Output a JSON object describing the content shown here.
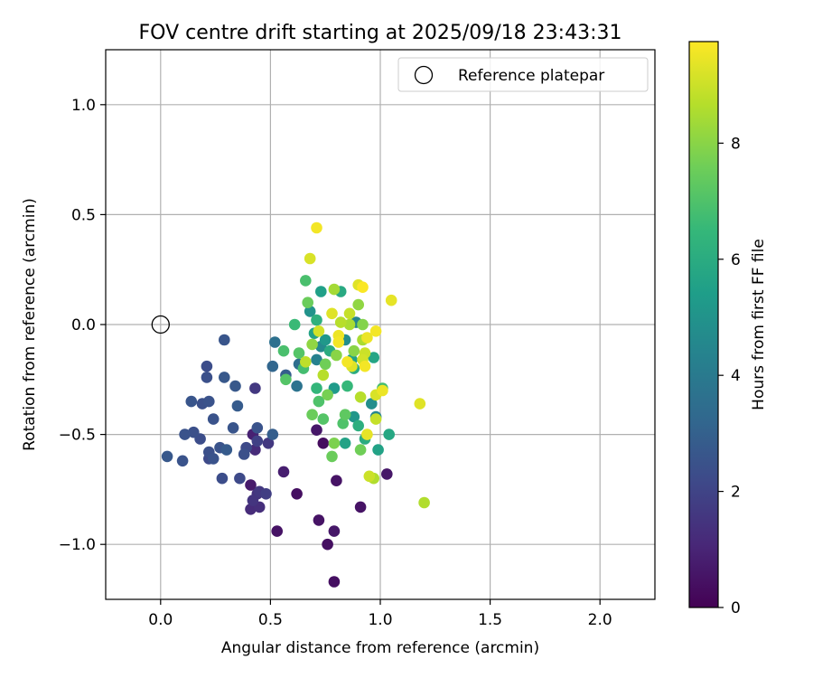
{
  "chart_data": {
    "type": "scatter",
    "title": "FOV centre drift starting at 2025/09/18 23:43:31",
    "xlabel": "Angular distance from reference (arcmin)",
    "ylabel": "Rotation from reference (arcmin)",
    "xlim": [
      -0.25,
      2.25
    ],
    "ylim": [
      -1.25,
      1.25
    ],
    "xticks": [
      0.0,
      0.5,
      1.0,
      1.5,
      2.0
    ],
    "xtick_labels": [
      "0.0",
      "0.5",
      "1.0",
      "1.5",
      "2.0"
    ],
    "yticks": [
      -1.0,
      -0.5,
      0.0,
      0.5,
      1.0
    ],
    "ytick_labels": [
      "−1.0",
      "−0.5",
      "0.0",
      "0.5",
      "1.0"
    ],
    "grid": true,
    "legend": {
      "position": "top-right",
      "entries": [
        {
          "label": "Reference platepar",
          "marker": "open-circle"
        }
      ]
    },
    "reference_point": {
      "x": 0.0,
      "y": 0.0
    },
    "colorbar": {
      "label": "Hours from first FF file",
      "min": 0,
      "max": 9.75,
      "ticks": [
        0,
        2,
        4,
        6,
        8
      ],
      "tick_labels": [
        "0",
        "2",
        "4",
        "6",
        "8"
      ],
      "colormap": [
        "#440154",
        "#482878",
        "#3e4989",
        "#31688e",
        "#26828e",
        "#1f9e89",
        "#35b779",
        "#6ece58",
        "#b5de2b",
        "#fde725"
      ]
    },
    "points": [
      {
        "x": 0.03,
        "y": -0.6,
        "h": 2.7
      },
      {
        "x": 0.1,
        "y": -0.62,
        "h": 2.5
      },
      {
        "x": 0.11,
        "y": -0.5,
        "h": 2.5
      },
      {
        "x": 0.15,
        "y": -0.49,
        "h": 2.4
      },
      {
        "x": 0.18,
        "y": -0.52,
        "h": 2.3
      },
      {
        "x": 0.14,
        "y": -0.35,
        "h": 2.6
      },
      {
        "x": 0.19,
        "y": -0.36,
        "h": 2.4
      },
      {
        "x": 0.22,
        "y": -0.35,
        "h": 2.5
      },
      {
        "x": 0.21,
        "y": -0.24,
        "h": 2.4
      },
      {
        "x": 0.21,
        "y": -0.19,
        "h": 2.3
      },
      {
        "x": 0.24,
        "y": -0.43,
        "h": 2.5
      },
      {
        "x": 0.22,
        "y": -0.58,
        "h": 2.4
      },
      {
        "x": 0.22,
        "y": -0.61,
        "h": 2.2
      },
      {
        "x": 0.27,
        "y": -0.56,
        "h": 2.5
      },
      {
        "x": 0.24,
        "y": -0.61,
        "h": 2.5
      },
      {
        "x": 0.29,
        "y": -0.07,
        "h": 2.6
      },
      {
        "x": 0.29,
        "y": -0.24,
        "h": 2.7
      },
      {
        "x": 0.3,
        "y": -0.57,
        "h": 2.8
      },
      {
        "x": 0.28,
        "y": -0.7,
        "h": 2.3
      },
      {
        "x": 0.33,
        "y": -0.47,
        "h": 2.6
      },
      {
        "x": 0.34,
        "y": -0.28,
        "h": 2.7
      },
      {
        "x": 0.35,
        "y": -0.37,
        "h": 2.8
      },
      {
        "x": 0.36,
        "y": -0.7,
        "h": 2.2
      },
      {
        "x": 0.38,
        "y": -0.59,
        "h": 2.4
      },
      {
        "x": 0.39,
        "y": -0.56,
        "h": 2.2
      },
      {
        "x": 0.41,
        "y": -0.73,
        "h": 0.7
      },
      {
        "x": 0.42,
        "y": -0.5,
        "h": 0.9
      },
      {
        "x": 0.41,
        "y": -0.84,
        "h": 1.2
      },
      {
        "x": 0.42,
        "y": -0.8,
        "h": 1.5
      },
      {
        "x": 0.43,
        "y": -0.57,
        "h": 1.2
      },
      {
        "x": 0.44,
        "y": -0.47,
        "h": 2.5
      },
      {
        "x": 0.44,
        "y": -0.53,
        "h": 1.9
      },
      {
        "x": 0.44,
        "y": -0.77,
        "h": 1.4
      },
      {
        "x": 0.43,
        "y": -0.29,
        "h": 1.6
      },
      {
        "x": 0.45,
        "y": -0.76,
        "h": 1.6
      },
      {
        "x": 0.45,
        "y": -0.83,
        "h": 1.3
      },
      {
        "x": 0.48,
        "y": -0.77,
        "h": 1.8
      },
      {
        "x": 0.49,
        "y": -0.54,
        "h": 1.6
      },
      {
        "x": 0.51,
        "y": -0.5,
        "h": 2.9
      },
      {
        "x": 0.51,
        "y": -0.19,
        "h": 3.2
      },
      {
        "x": 0.52,
        "y": -0.08,
        "h": 3.6
      },
      {
        "x": 0.53,
        "y": -0.94,
        "h": 0.5
      },
      {
        "x": 0.56,
        "y": -0.67,
        "h": 0.8
      },
      {
        "x": 0.57,
        "y": -0.23,
        "h": 2.9
      },
      {
        "x": 0.62,
        "y": -0.77,
        "h": 0.4
      },
      {
        "x": 0.62,
        "y": -0.28,
        "h": 3.7
      },
      {
        "x": 0.63,
        "y": -0.18,
        "h": 3.5
      },
      {
        "x": 0.56,
        "y": -0.12,
        "h": 6.9
      },
      {
        "x": 0.57,
        "y": -0.25,
        "h": 7.1
      },
      {
        "x": 0.61,
        "y": 0.0,
        "h": 6.6
      },
      {
        "x": 0.63,
        "y": -0.13,
        "h": 7.1
      },
      {
        "x": 0.65,
        "y": -0.2,
        "h": 6.8
      },
      {
        "x": 0.66,
        "y": -0.17,
        "h": 8.8
      },
      {
        "x": 0.66,
        "y": 0.2,
        "h": 6.9
      },
      {
        "x": 0.68,
        "y": 0.3,
        "h": 9.2
      },
      {
        "x": 0.68,
        "y": 0.06,
        "h": 5.0
      },
      {
        "x": 0.67,
        "y": 0.1,
        "h": 7.5
      },
      {
        "x": 0.69,
        "y": -0.09,
        "h": 8.1
      },
      {
        "x": 0.7,
        "y": -0.04,
        "h": 5.6
      },
      {
        "x": 0.69,
        "y": -0.41,
        "h": 7.5
      },
      {
        "x": 0.71,
        "y": 0.44,
        "h": 9.6
      },
      {
        "x": 0.71,
        "y": 0.02,
        "h": 6.2
      },
      {
        "x": 0.71,
        "y": -0.16,
        "h": 4.3
      },
      {
        "x": 0.71,
        "y": -0.29,
        "h": 6.4
      },
      {
        "x": 0.71,
        "y": -0.48,
        "h": 0.6
      },
      {
        "x": 0.72,
        "y": -0.35,
        "h": 7.0
      },
      {
        "x": 0.72,
        "y": -0.89,
        "h": 0.5
      },
      {
        "x": 0.73,
        "y": 0.15,
        "h": 5.5
      },
      {
        "x": 0.72,
        "y": -0.03,
        "h": 9.1
      },
      {
        "x": 0.73,
        "y": -0.1,
        "h": 4.6
      },
      {
        "x": 0.74,
        "y": -0.43,
        "h": 7.1
      },
      {
        "x": 0.74,
        "y": -0.54,
        "h": 0.3
      },
      {
        "x": 0.74,
        "y": -0.23,
        "h": 8.7
      },
      {
        "x": 0.75,
        "y": -0.18,
        "h": 7.6
      },
      {
        "x": 0.75,
        "y": -0.07,
        "h": 5.2
      },
      {
        "x": 0.76,
        "y": -1.0,
        "h": 0.4
      },
      {
        "x": 0.76,
        "y": -0.32,
        "h": 7.7
      },
      {
        "x": 0.77,
        "y": -0.12,
        "h": 6.0
      },
      {
        "x": 0.78,
        "y": -0.6,
        "h": 7.5
      },
      {
        "x": 0.78,
        "y": 0.05,
        "h": 9.3
      },
      {
        "x": 0.79,
        "y": -0.54,
        "h": 7.8
      },
      {
        "x": 0.79,
        "y": -0.94,
        "h": 0.6
      },
      {
        "x": 0.79,
        "y": -1.17,
        "h": 0.4
      },
      {
        "x": 0.8,
        "y": -0.71,
        "h": 0.5
      },
      {
        "x": 0.79,
        "y": 0.16,
        "h": 8.4
      },
      {
        "x": 0.79,
        "y": -0.29,
        "h": 5.3
      },
      {
        "x": 0.8,
        "y": -0.14,
        "h": 8.0
      },
      {
        "x": 0.81,
        "y": -0.05,
        "h": 9.5
      },
      {
        "x": 0.81,
        "y": -0.08,
        "h": 9.6
      },
      {
        "x": 0.82,
        "y": 0.15,
        "h": 5.9
      },
      {
        "x": 0.82,
        "y": 0.01,
        "h": 8.7
      },
      {
        "x": 0.83,
        "y": -0.45,
        "h": 7.0
      },
      {
        "x": 0.84,
        "y": -0.41,
        "h": 7.3
      },
      {
        "x": 0.84,
        "y": -0.54,
        "h": 5.6
      },
      {
        "x": 0.84,
        "y": -0.07,
        "h": 4.8
      },
      {
        "x": 0.85,
        "y": -0.28,
        "h": 6.5
      },
      {
        "x": 0.85,
        "y": -0.17,
        "h": 9.6
      },
      {
        "x": 0.86,
        "y": 0.05,
        "h": 8.9
      },
      {
        "x": 0.86,
        "y": 0.0,
        "h": 8.5
      },
      {
        "x": 0.87,
        "y": -0.19,
        "h": 9.3
      },
      {
        "x": 0.87,
        "y": -0.16,
        "h": 5.5
      },
      {
        "x": 0.88,
        "y": -0.2,
        "h": 6.0
      },
      {
        "x": 0.88,
        "y": -0.42,
        "h": 5.1
      },
      {
        "x": 0.88,
        "y": -0.12,
        "h": 8.0
      },
      {
        "x": 0.89,
        "y": 0.01,
        "h": 4.5
      },
      {
        "x": 0.9,
        "y": 0.09,
        "h": 8.1
      },
      {
        "x": 0.9,
        "y": 0.18,
        "h": 9.3
      },
      {
        "x": 0.9,
        "y": -0.46,
        "h": 6.1
      },
      {
        "x": 0.91,
        "y": -0.33,
        "h": 8.7
      },
      {
        "x": 0.91,
        "y": -0.57,
        "h": 7.6
      },
      {
        "x": 0.92,
        "y": -0.07,
        "h": 8.5
      },
      {
        "x": 0.92,
        "y": 0.17,
        "h": 9.7
      },
      {
        "x": 0.91,
        "y": -0.83,
        "h": 0.5
      },
      {
        "x": 0.92,
        "y": -0.16,
        "h": 9.1
      },
      {
        "x": 0.92,
        "y": 0.0,
        "h": 7.9
      },
      {
        "x": 0.93,
        "y": -0.13,
        "h": 9.0
      },
      {
        "x": 0.93,
        "y": -0.19,
        "h": 9.6
      },
      {
        "x": 0.93,
        "y": -0.52,
        "h": 6.0
      },
      {
        "x": 0.94,
        "y": -0.5,
        "h": 9.4
      },
      {
        "x": 0.94,
        "y": -0.06,
        "h": 9.5
      },
      {
        "x": 0.95,
        "y": -0.69,
        "h": 9.0
      },
      {
        "x": 0.96,
        "y": -0.36,
        "h": 4.8
      },
      {
        "x": 0.97,
        "y": -0.15,
        "h": 5.7
      },
      {
        "x": 0.97,
        "y": -0.7,
        "h": 8.6
      },
      {
        "x": 0.98,
        "y": -0.42,
        "h": 4.5
      },
      {
        "x": 0.98,
        "y": -0.43,
        "h": 8.9
      },
      {
        "x": 0.98,
        "y": -0.03,
        "h": 9.6
      },
      {
        "x": 0.98,
        "y": -0.32,
        "h": 9.2
      },
      {
        "x": 0.99,
        "y": -0.57,
        "h": 5.6
      },
      {
        "x": 1.01,
        "y": -0.29,
        "h": 6.8
      },
      {
        "x": 1.01,
        "y": -0.3,
        "h": 9.5
      },
      {
        "x": 1.03,
        "y": -0.68,
        "h": 0.6
      },
      {
        "x": 1.04,
        "y": -0.5,
        "h": 5.8
      },
      {
        "x": 1.05,
        "y": 0.11,
        "h": 9.4
      },
      {
        "x": 1.18,
        "y": -0.36,
        "h": 9.3
      },
      {
        "x": 1.2,
        "y": -0.81,
        "h": 8.6
      }
    ]
  }
}
